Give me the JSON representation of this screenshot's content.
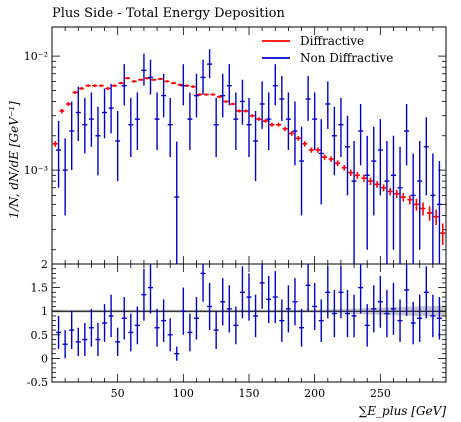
{
  "chart_data": {
    "title": "Plus Side - Total Energy Deposition",
    "xlabel": "∑E_plus [GeV]",
    "ylabel": "1/N, dN/dE [GeV⁻¹]",
    "xlim": [
      0,
      300
    ],
    "legend_position": "top-right",
    "top_panel": {
      "type": "scatter",
      "yscale": "log",
      "ylim": [
        0.00015,
        0.018
      ],
      "ytick_labels": [
        "10⁻³",
        "10⁻²"
      ],
      "series": [
        {
          "name": "Diffractive",
          "color": "#ff0000",
          "x": [
            2.5,
            7.5,
            12.5,
            17.5,
            22.5,
            27.5,
            32.5,
            37.5,
            42.5,
            47.5,
            52.5,
            57.5,
            62.5,
            67.5,
            72.5,
            77.5,
            82.5,
            87.5,
            92.5,
            97.5,
            102.5,
            107.5,
            112.5,
            117.5,
            122.5,
            127.5,
            132.5,
            137.5,
            142.5,
            147.5,
            152.5,
            157.5,
            162.5,
            167.5,
            172.5,
            177.5,
            182.5,
            187.5,
            192.5,
            197.5,
            202.5,
            207.5,
            212.5,
            217.5,
            222.5,
            227.5,
            232.5,
            237.5,
            242.5,
            247.5,
            252.5,
            257.5,
            262.5,
            267.5,
            272.5,
            277.5,
            282.5,
            287.5,
            292.5,
            297.5
          ],
          "y": [
            0.0017,
            0.0033,
            0.0038,
            0.0048,
            0.0052,
            0.0055,
            0.0055,
            0.0055,
            0.0052,
            0.0055,
            0.0058,
            0.0064,
            0.006,
            0.0062,
            0.0064,
            0.0062,
            0.0063,
            0.006,
            0.0058,
            0.0056,
            0.0055,
            0.0054,
            0.0046,
            0.0046,
            0.0046,
            0.0044,
            0.004,
            0.0038,
            0.0033,
            0.0033,
            0.003,
            0.0028,
            0.0027,
            0.0025,
            0.0025,
            0.0023,
            0.0021,
            0.0019,
            0.0017,
            0.0015,
            0.0015,
            0.0013,
            0.00125,
            0.00115,
            0.00105,
            0.00095,
            0.0009,
            0.00085,
            0.0008,
            0.00075,
            0.0007,
            0.00065,
            0.00062,
            0.00058,
            0.00055,
            0.0005,
            0.00046,
            0.00042,
            0.00039,
            0.00028
          ],
          "yerr": [
            0.0001,
            0.00015,
            0.00015,
            0.00015,
            0.00015,
            0.00015,
            0.00015,
            0.00015,
            0.00015,
            0.00015,
            0.00015,
            0.00015,
            0.00015,
            0.00015,
            0.00015,
            0.00015,
            0.00015,
            0.00015,
            0.00015,
            0.00015,
            0.00015,
            0.00015,
            0.00012,
            0.00012,
            0.00012,
            0.00012,
            0.0001,
            0.0001,
            0.0001,
            0.0001,
            0.0001,
            0.0001,
            0.0001,
            0.0001,
            0.0001,
            0.0001,
            0.0001,
            9e-05,
            9e-05,
            8e-05,
            8e-05,
            7e-05,
            7e-05,
            7e-05,
            6e-05,
            6e-05,
            6e-05,
            6e-05,
            6e-05,
            5e-05,
            5e-05,
            5e-05,
            5e-05,
            5e-05,
            5e-05,
            6e-05,
            6e-05,
            6e-05,
            6e-05,
            6e-05
          ]
        },
        {
          "name": "Non Diffractive",
          "color": "#0000cc",
          "x": [
            5,
            10,
            15,
            20,
            25,
            30,
            35,
            40,
            45,
            50,
            55,
            60,
            65,
            70,
            75,
            80,
            85,
            90,
            95,
            100,
            105,
            110,
            115,
            120,
            125,
            130,
            135,
            140,
            145,
            150,
            155,
            160,
            165,
            170,
            175,
            180,
            185,
            190,
            195,
            200,
            205,
            210,
            215,
            220,
            225,
            230,
            235,
            240,
            245,
            250,
            255,
            260,
            265,
            270,
            275,
            280,
            285,
            290,
            295
          ],
          "y": [
            0.0015,
            0.001,
            0.0022,
            0.0032,
            0.0025,
            0.0028,
            0.002,
            0.0032,
            0.0035,
            0.0018,
            0.0055,
            0.0025,
            0.0028,
            0.0075,
            0.0065,
            0.0028,
            0.0045,
            0.0025,
            0.00058,
            0.0055,
            0.0028,
            0.0045,
            0.0065,
            0.0085,
            0.0025,
            0.0045,
            0.0055,
            0.0028,
            0.004,
            0.0025,
            0.0018,
            0.0038,
            0.0028,
            0.0055,
            0.0042,
            0.0028,
            0.0022,
            0.0012,
            0.0042,
            0.0028,
            0.0014,
            0.0038,
            0.002,
            0.0025,
            0.0016,
            0.0008,
            0.0022,
            0.0009,
            0.0012,
            0.0015,
            0.0008,
            0.0009,
            0.0007,
            0.0022,
            0.0006,
            0.0008,
            0.0016,
            0.0006,
            0.0005
          ],
          "yerr_low": [
            0.0008,
            0.0006,
            0.0012,
            0.0014,
            0.0011,
            0.0012,
            0.0011,
            0.0013,
            0.0014,
            0.001,
            0.0018,
            0.0012,
            0.0013,
            0.002,
            0.0019,
            0.0013,
            0.0016,
            0.0012,
            0.0005,
            0.0018,
            0.0013,
            0.0016,
            0.0019,
            0.0021,
            0.0012,
            0.0016,
            0.0018,
            0.0013,
            0.0015,
            0.0012,
            0.001,
            0.0015,
            0.0013,
            0.0018,
            0.0015,
            0.0013,
            0.0011,
            0.0008,
            0.0015,
            0.0013,
            0.0009,
            0.0015,
            0.0011,
            0.0012,
            0.001,
            0.0007,
            0.0011,
            0.0007,
            0.0008,
            0.0009,
            0.0007,
            0.0007,
            0.0006,
            0.0011,
            0.0005,
            0.0006,
            0.001,
            0.0005,
            0.00045
          ],
          "yerr_high": [
            0.0012,
            0.0009,
            0.0018,
            0.0022,
            0.0018,
            0.002,
            0.0016,
            0.002,
            0.0022,
            0.0015,
            0.003,
            0.0018,
            0.002,
            0.003,
            0.0028,
            0.002,
            0.0025,
            0.0018,
            0.0012,
            0.003,
            0.002,
            0.0025,
            0.0028,
            0.003,
            0.0018,
            0.0025,
            0.003,
            0.002,
            0.0022,
            0.0018,
            0.0015,
            0.0022,
            0.002,
            0.003,
            0.0025,
            0.002,
            0.0018,
            0.0012,
            0.0025,
            0.002,
            0.0014,
            0.0022,
            0.0016,
            0.0018,
            0.0014,
            0.001,
            0.0016,
            0.0011,
            0.0012,
            0.0013,
            0.001,
            0.0011,
            0.0009,
            0.0016,
            0.0008,
            0.001,
            0.0013,
            0.0008,
            0.0007
          ]
        }
      ]
    },
    "ratio_panel": {
      "type": "scatter",
      "ylim": [
        -0.5,
        2
      ],
      "yticks": [
        -0.5,
        0,
        0.5,
        1,
        1.5,
        2
      ],
      "reference_line": 1,
      "band_color": "#b0b0b0",
      "series_name": "Non Diffractive",
      "x": [
        5,
        10,
        15,
        20,
        25,
        30,
        35,
        40,
        45,
        50,
        55,
        60,
        65,
        70,
        75,
        80,
        85,
        90,
        95,
        100,
        105,
        110,
        115,
        120,
        125,
        130,
        135,
        140,
        145,
        150,
        155,
        160,
        165,
        170,
        175,
        180,
        185,
        190,
        195,
        200,
        205,
        210,
        215,
        220,
        225,
        230,
        235,
        240,
        245,
        250,
        255,
        260,
        265,
        270,
        275,
        280,
        285,
        290,
        295
      ],
      "y": [
        0.55,
        0.3,
        0.6,
        0.35,
        0.4,
        0.65,
        0.4,
        0.75,
        0.9,
        0.35,
        0.85,
        0.55,
        0.7,
        1.35,
        1.5,
        0.65,
        0.8,
        0.5,
        0.1,
        1.0,
        0.55,
        0.85,
        1.8,
        1.1,
        0.6,
        1.2,
        1.05,
        0.7,
        1.4,
        1.3,
        0.9,
        1.6,
        1.25,
        1.3,
        0.8,
        1.05,
        1.2,
        0.65,
        1.55,
        1.1,
        0.8,
        1.4,
        0.95,
        1.4,
        0.95,
        0.9,
        1.5,
        0.7,
        1.05,
        1.2,
        0.95,
        1.05,
        0.8,
        1.45,
        0.75,
        0.85,
        1.4,
        0.9,
        0.85
      ],
      "yerr": [
        0.35,
        0.3,
        0.4,
        0.3,
        0.35,
        0.4,
        0.35,
        0.4,
        0.45,
        0.3,
        0.45,
        0.4,
        0.4,
        0.55,
        0.55,
        0.4,
        0.45,
        0.35,
        0.15,
        0.5,
        0.4,
        0.45,
        0.6,
        0.5,
        0.4,
        0.5,
        0.5,
        0.4,
        0.55,
        0.5,
        0.45,
        0.55,
        0.5,
        0.55,
        0.45,
        0.5,
        0.5,
        0.4,
        0.55,
        0.5,
        0.45,
        0.55,
        0.5,
        0.55,
        0.5,
        0.45,
        0.55,
        0.45,
        0.5,
        0.55,
        0.5,
        0.55,
        0.45,
        0.55,
        0.45,
        0.5,
        0.55,
        0.45,
        0.45
      ]
    },
    "xticks": [
      50,
      100,
      150,
      200,
      250
    ]
  }
}
